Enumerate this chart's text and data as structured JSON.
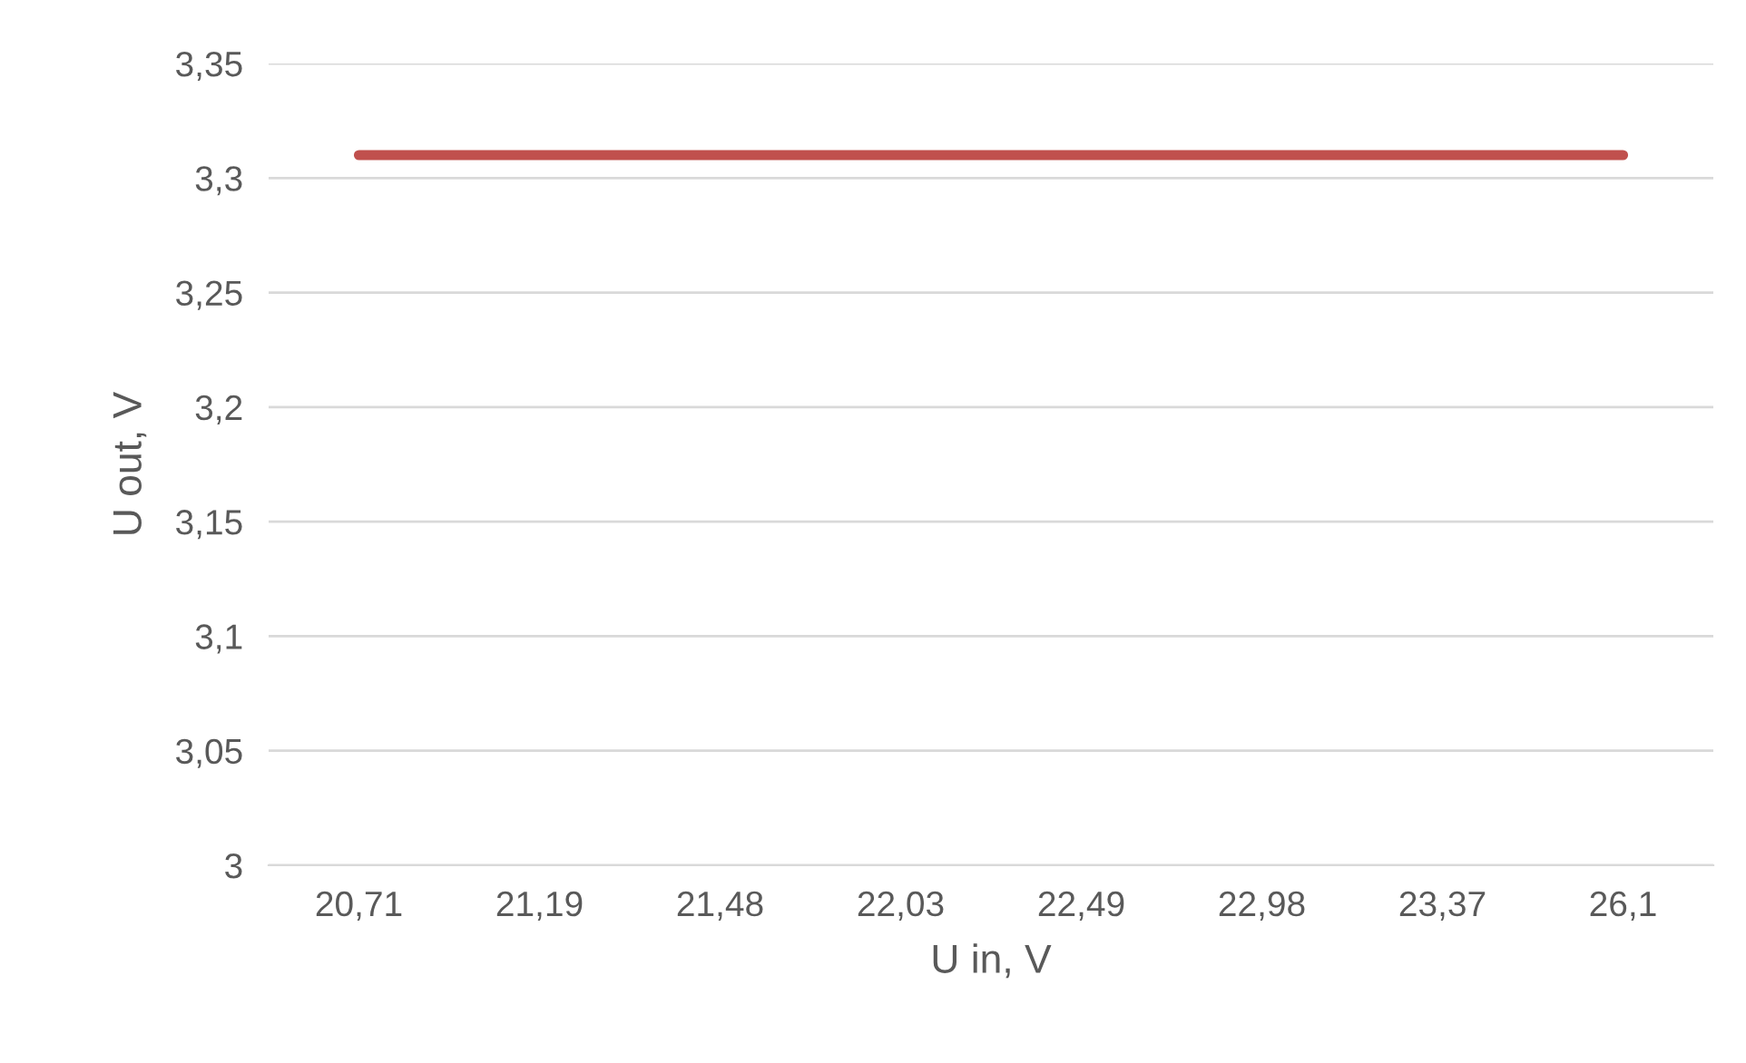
{
  "chart_data": {
    "type": "line",
    "xlabel": "U in, V",
    "ylabel": "U out, V",
    "categories": [
      "20,71",
      "21,19",
      "21,48",
      "22,03",
      "22,49",
      "22,98",
      "23,37",
      "26,1"
    ],
    "series": [
      {
        "color": "#c0504d",
        "values": [
          3.31,
          3.31,
          3.31,
          3.31,
          3.31,
          3.31,
          3.31,
          3.31
        ]
      }
    ],
    "ylim": [
      3,
      3.35
    ],
    "yticks": [
      {
        "value": 3,
        "label": "3"
      },
      {
        "value": 3.05,
        "label": "3,05"
      },
      {
        "value": 3.1,
        "label": "3,1"
      },
      {
        "value": 3.15,
        "label": "3,15"
      },
      {
        "value": 3.2,
        "label": "3,2"
      },
      {
        "value": 3.25,
        "label": "3,25"
      },
      {
        "value": 3.3,
        "label": "3,3"
      },
      {
        "value": 3.35,
        "label": "3,35"
      }
    ],
    "grid": "y",
    "legend": false,
    "marker": "none",
    "line_style": "solid"
  }
}
